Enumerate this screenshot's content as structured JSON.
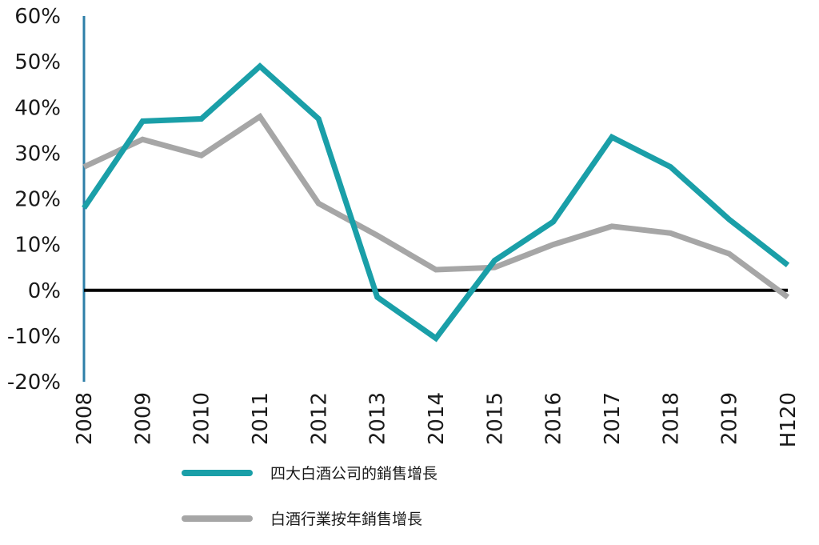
{
  "chart_data": {
    "type": "line",
    "title": "",
    "xlabel": "",
    "ylabel": "",
    "categories": [
      "2008",
      "2009",
      "2010",
      "2011",
      "2012",
      "2013",
      "2014",
      "2015",
      "2016",
      "2017",
      "2018",
      "2019",
      "H120"
    ],
    "y_ticks": [
      "60%",
      "50%",
      "40%",
      "30%",
      "20%",
      "10%",
      "0%",
      "-10%",
      "-20%"
    ],
    "y_tick_values": [
      60,
      50,
      40,
      30,
      20,
      10,
      0,
      -10,
      -20
    ],
    "ylim": [
      -20,
      60
    ],
    "grid": false,
    "legend_position": "bottom",
    "series": [
      {
        "name": "四大白酒公司的銷售增長",
        "color": "#1a9fa8",
        "values": [
          18,
          37,
          37.5,
          49,
          37.5,
          -1.5,
          -10.5,
          6.5,
          15,
          33.5,
          27,
          15.5,
          5.5
        ]
      },
      {
        "name": "白酒行業按年銷售增長",
        "color": "#a6a6a6",
        "values": [
          27,
          33,
          29.5,
          38,
          19,
          12,
          4.5,
          5,
          10,
          14,
          12.5,
          8,
          -1.5
        ]
      }
    ]
  }
}
